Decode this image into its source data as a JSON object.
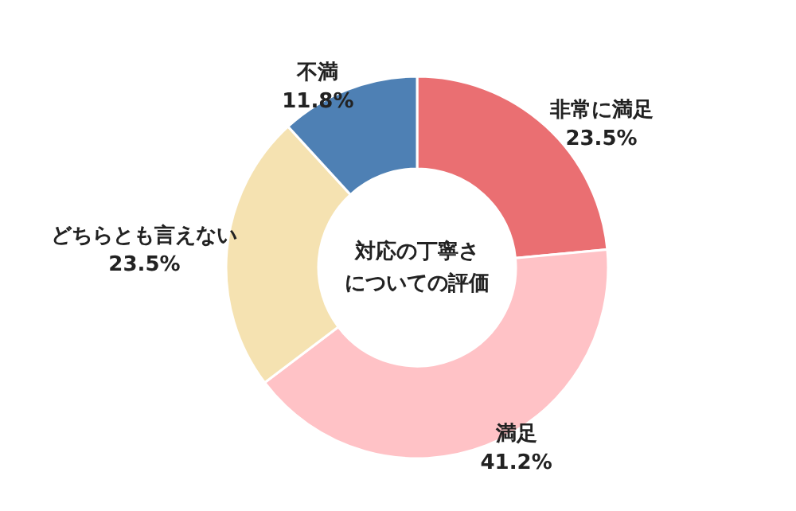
{
  "chart_data": {
    "type": "donut",
    "title": "対応の丁寧さについての評価",
    "categories": [
      "非常に満足",
      "満足",
      "どちらとも言えない",
      "不満"
    ],
    "values": [
      23.5,
      41.2,
      23.5,
      11.8
    ],
    "value_labels": [
      "23.5%",
      "41.2%",
      "23.5%",
      "11.8%"
    ],
    "colors": [
      "#ea6f72",
      "#ffc2c6",
      "#f5e2b1",
      "#4e80b4"
    ]
  }
}
